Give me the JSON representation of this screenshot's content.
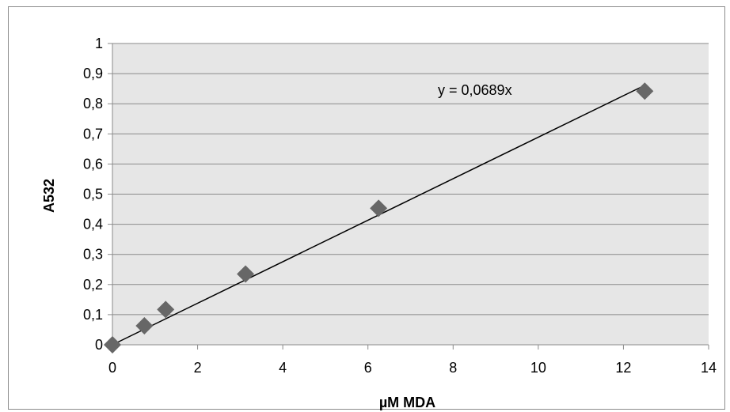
{
  "chart_data": {
    "type": "scatter",
    "xlabel": "µM MDA",
    "ylabel": "A532",
    "xlim": [
      0,
      14
    ],
    "ylim": [
      0,
      1
    ],
    "x_ticks": [
      "0",
      "2",
      "4",
      "6",
      "8",
      "10",
      "12",
      "14"
    ],
    "y_ticks": [
      "0",
      "0,1",
      "0,2",
      "0,3",
      "0,4",
      "0,5",
      "0,6",
      "0,7",
      "0,8",
      "0,9",
      "1"
    ],
    "grid": "horizontal",
    "plot_background": "#e6e6e6",
    "marker_color": "#676767",
    "series": [
      {
        "points": [
          {
            "x": 0,
            "y": 0
          },
          {
            "x": 0.75,
            "y": 0.063
          },
          {
            "x": 1.25,
            "y": 0.117
          },
          {
            "x": 3.125,
            "y": 0.235
          },
          {
            "x": 6.25,
            "y": 0.453
          },
          {
            "x": 12.5,
            "y": 0.842
          }
        ]
      }
    ],
    "trendline": {
      "slope": 0.0689,
      "intercept": 0,
      "x_range": [
        0,
        12.5
      ],
      "color": "#000000"
    },
    "annotations": [
      "y = 0,0689x"
    ]
  }
}
